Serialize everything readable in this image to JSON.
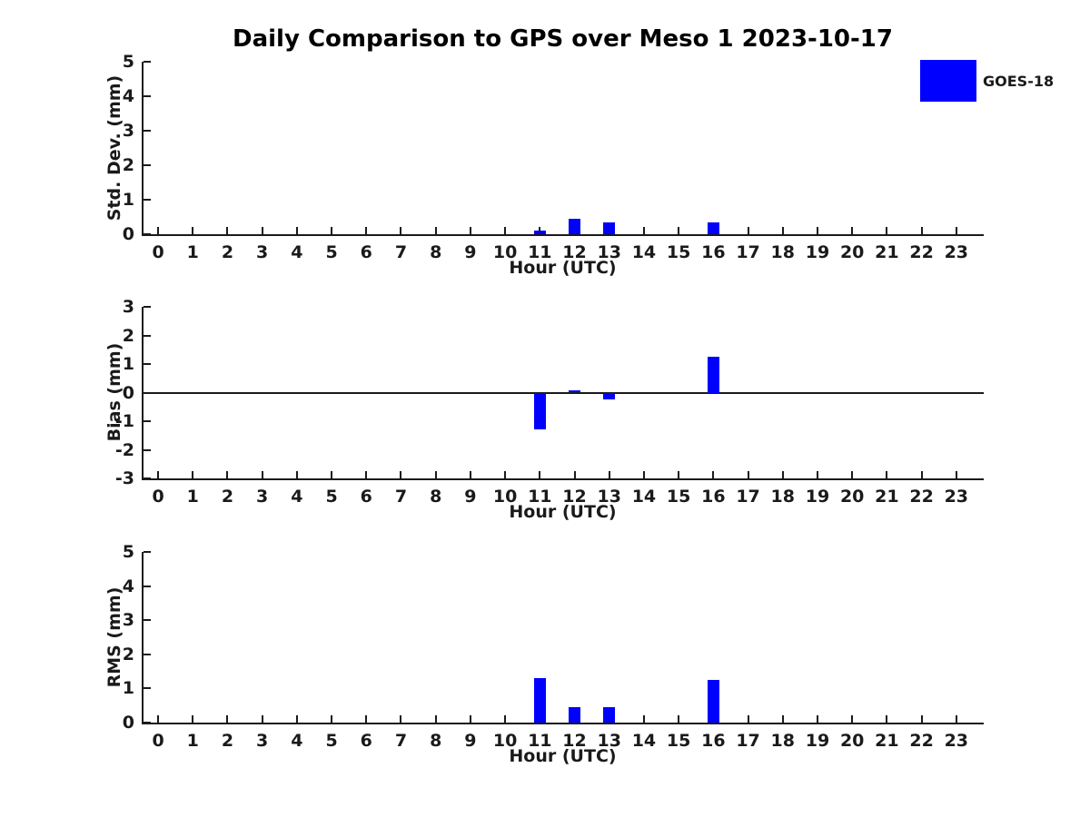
{
  "figure": {
    "title": "Daily Comparison to GPS over Meso 1 2023-10-17",
    "background": "#ffffff"
  },
  "legend": {
    "label": "GOES-18",
    "color": "#0000ff",
    "position": "top-right-outside"
  },
  "axis_color": "#1a1a1a",
  "chart_data": [
    {
      "type": "bar",
      "title": "Daily Comparison to GPS over Meso 1 2023-10-17",
      "ylabel": "Std. Dev. (mm)",
      "xlabel": "Hour (UTC)",
      "ylim": [
        0,
        5
      ],
      "yticks": [
        0,
        1,
        2,
        3,
        4,
        5
      ],
      "xlim": [
        -0.42,
        23.79
      ],
      "grid": false,
      "categories": [
        0,
        1,
        2,
        3,
        4,
        5,
        6,
        7,
        8,
        9,
        10,
        11,
        12,
        13,
        14,
        15,
        16,
        17,
        18,
        19,
        20,
        21,
        22,
        23
      ],
      "series": [
        {
          "name": "GOES-18",
          "color": "#0000ff",
          "values": [
            null,
            null,
            null,
            null,
            null,
            null,
            null,
            null,
            null,
            null,
            null,
            0.1,
            0.45,
            0.35,
            null,
            null,
            0.33,
            null,
            null,
            null,
            null,
            null,
            null,
            null
          ]
        }
      ]
    },
    {
      "type": "bar",
      "ylabel": "Bias (mm)",
      "xlabel": "Hour (UTC)",
      "ylim": [
        -3,
        3
      ],
      "yticks": [
        -3,
        -2,
        -1,
        0,
        1,
        2,
        3
      ],
      "xlim": [
        -0.42,
        23.79
      ],
      "grid": false,
      "zero_line": true,
      "categories": [
        0,
        1,
        2,
        3,
        4,
        5,
        6,
        7,
        8,
        9,
        10,
        11,
        12,
        13,
        14,
        15,
        16,
        17,
        18,
        19,
        20,
        21,
        22,
        23
      ],
      "series": [
        {
          "name": "GOES-18",
          "color": "#0000ff",
          "values": [
            null,
            null,
            null,
            null,
            null,
            null,
            null,
            null,
            null,
            null,
            null,
            -1.3,
            0.08,
            -0.25,
            null,
            null,
            1.25,
            null,
            null,
            null,
            null,
            null,
            null,
            null
          ]
        }
      ]
    },
    {
      "type": "bar",
      "ylabel": "RMS (mm)",
      "xlabel": "Hour (UTC)",
      "ylim": [
        0,
        5
      ],
      "yticks": [
        0,
        1,
        2,
        3,
        4,
        5
      ],
      "xlim": [
        -0.42,
        23.79
      ],
      "grid": false,
      "categories": [
        0,
        1,
        2,
        3,
        4,
        5,
        6,
        7,
        8,
        9,
        10,
        11,
        12,
        13,
        14,
        15,
        16,
        17,
        18,
        19,
        20,
        21,
        22,
        23
      ],
      "series": [
        {
          "name": "GOES-18",
          "color": "#0000ff",
          "values": [
            null,
            null,
            null,
            null,
            null,
            null,
            null,
            null,
            null,
            null,
            null,
            1.3,
            0.45,
            0.45,
            null,
            null,
            1.25,
            null,
            null,
            null,
            null,
            null,
            null,
            null
          ]
        }
      ]
    }
  ]
}
